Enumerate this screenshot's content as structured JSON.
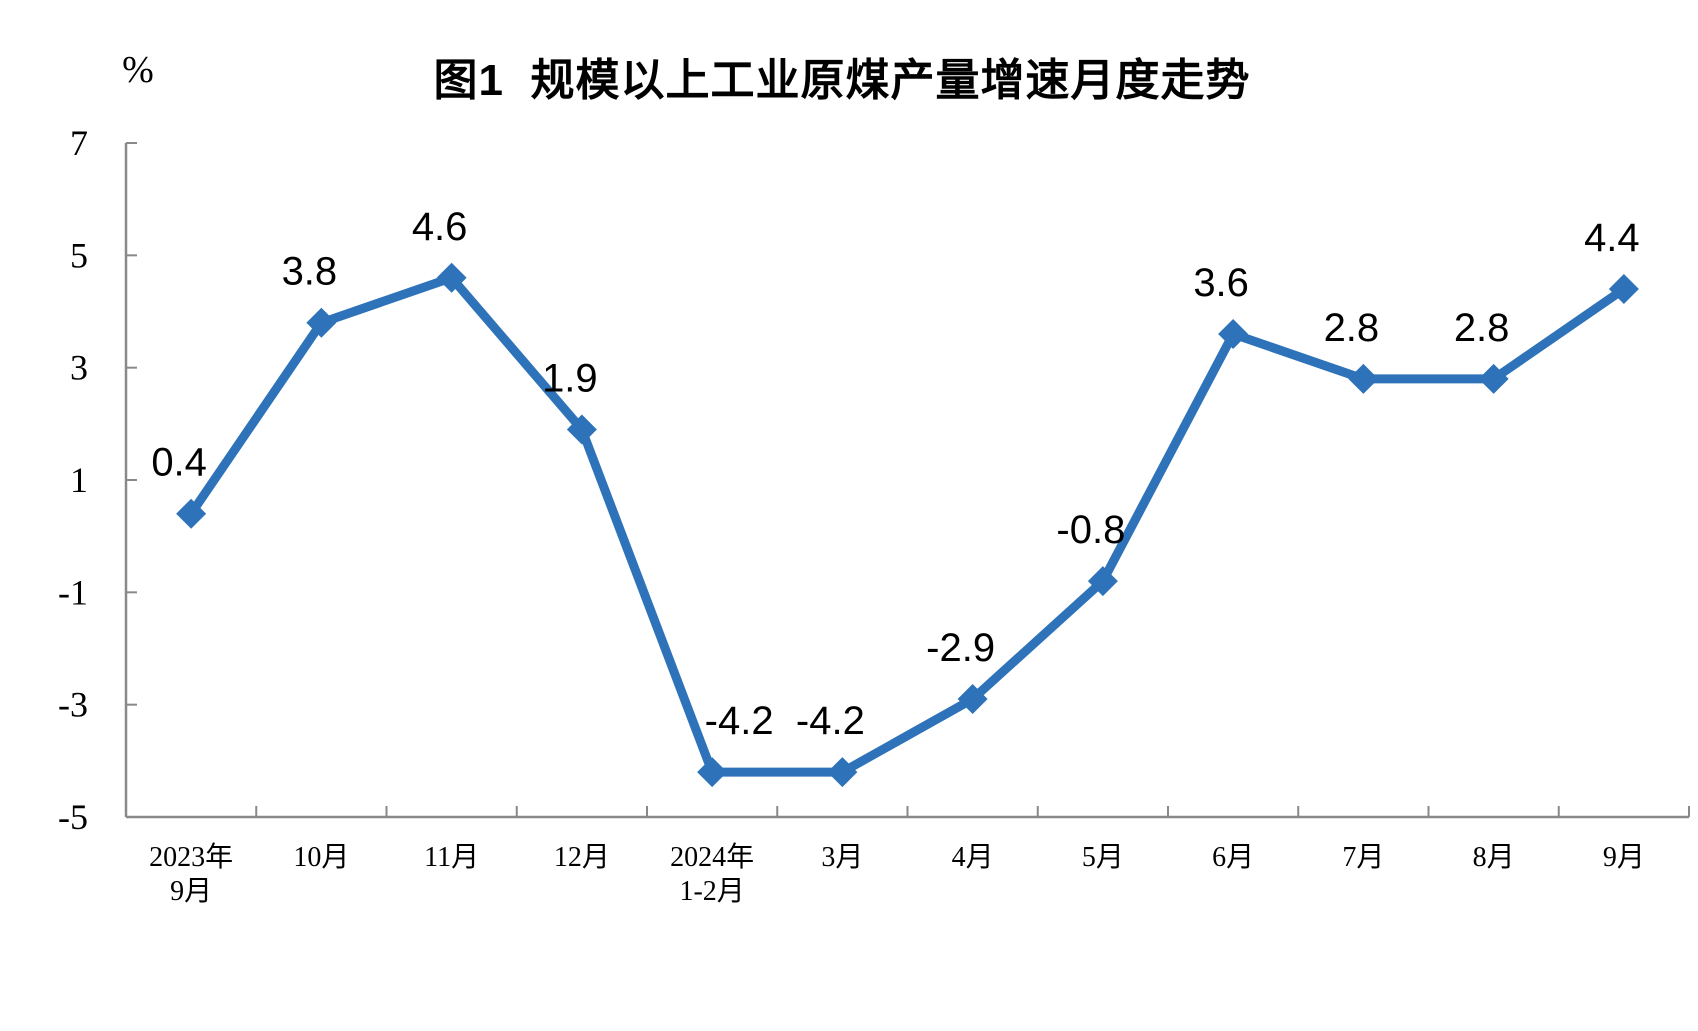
{
  "figure": {
    "background": "#ffffff"
  },
  "chart_data": {
    "type": "line",
    "title": "图1  规模以上工业原煤产量增速月度走势",
    "ylabel": "%",
    "xlabel": "",
    "categories": [
      {
        "line1": "2023年",
        "line2": "9月"
      },
      {
        "line1": "10月",
        "line2": ""
      },
      {
        "line1": "11月",
        "line2": ""
      },
      {
        "line1": "12月",
        "line2": ""
      },
      {
        "line1": "2024年",
        "line2": "1-2月"
      },
      {
        "line1": "3月",
        "line2": ""
      },
      {
        "line1": "4月",
        "line2": ""
      },
      {
        "line1": "5月",
        "line2": ""
      },
      {
        "line1": "6月",
        "line2": ""
      },
      {
        "line1": "7月",
        "line2": ""
      },
      {
        "line1": "8月",
        "line2": ""
      },
      {
        "line1": "9月",
        "line2": ""
      }
    ],
    "values": [
      0.4,
      3.8,
      4.6,
      1.9,
      -4.2,
      -4.2,
      -2.9,
      -0.8,
      3.6,
      2.8,
      2.8,
      4.4
    ],
    "data_labels": [
      "0.4",
      "3.8",
      "4.6",
      "1.9",
      "-4.2",
      "-4.2",
      "-2.9",
      "-0.8",
      "3.6",
      "2.8",
      "2.8",
      "4.4"
    ],
    "ylim": [
      -5,
      7
    ],
    "yticks": [
      7,
      5,
      3,
      1,
      -1,
      -3,
      -5
    ],
    "grid": false,
    "legend": false,
    "marker": "diamond",
    "colors": {
      "series": "#2E73B9",
      "axis": "#898989",
      "text": "#000000"
    }
  }
}
